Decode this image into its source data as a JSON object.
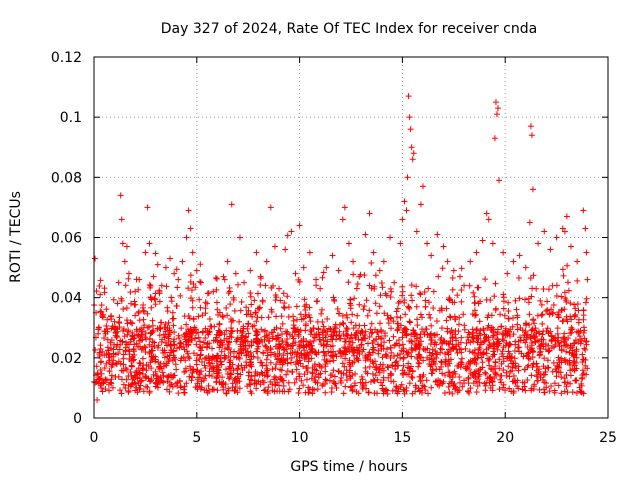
{
  "chart_data": {
    "type": "scatter",
    "title": "Day 327 of 2024, Rate Of TEC Index for receiver cnda",
    "xlabel": "GPS time / hours",
    "ylabel": "ROTI / TECUs",
    "xlim": [
      0,
      25
    ],
    "ylim": [
      0,
      0.12
    ],
    "xticks": [
      0,
      5,
      10,
      15,
      20,
      25
    ],
    "xtick_labels": [
      "0",
      "5",
      "10",
      "15",
      "20",
      "25"
    ],
    "yticks": [
      0,
      0.02,
      0.04,
      0.06,
      0.08,
      0.1,
      0.12
    ],
    "ytick_labels": [
      "0",
      "0.02",
      "0.04",
      "0.06",
      "0.08",
      "0.1",
      "0.12"
    ],
    "grid": true,
    "marker": "+",
    "color": "#ff0000",
    "series": [
      {
        "values": [
          [
            0.05,
            0.053
          ],
          [
            0.1,
            0.035
          ],
          [
            0.2,
            0.028
          ],
          [
            0.3,
            0.041
          ],
          [
            0.0,
            0.012
          ],
          [
            0.15,
            0.006
          ],
          [
            0.4,
            0.022
          ],
          [
            0.6,
            0.018
          ],
          [
            0.8,
            0.025
          ],
          [
            1.0,
            0.032
          ],
          [
            1.2,
            0.045
          ],
          [
            1.3,
            0.074
          ],
          [
            1.35,
            0.066
          ],
          [
            1.4,
            0.058
          ],
          [
            1.5,
            0.052
          ],
          [
            1.6,
            0.057
          ],
          [
            1.7,
            0.048
          ],
          [
            1.8,
            0.038
          ],
          [
            2.0,
            0.042
          ],
          [
            2.2,
            0.046
          ],
          [
            2.5,
            0.055
          ],
          [
            2.6,
            0.07
          ],
          [
            2.7,
            0.058
          ],
          [
            2.9,
            0.047
          ],
          [
            3.1,
            0.051
          ],
          [
            3.3,
            0.044
          ],
          [
            3.5,
            0.05
          ],
          [
            3.7,
            0.053
          ],
          [
            3.9,
            0.048
          ],
          [
            4.1,
            0.046
          ],
          [
            4.3,
            0.052
          ],
          [
            4.5,
            0.06
          ],
          [
            4.6,
            0.069
          ],
          [
            4.7,
            0.063
          ],
          [
            4.8,
            0.055
          ],
          [
            5.0,
            0.049
          ],
          [
            5.2,
            0.045
          ],
          [
            5.5,
            0.038
          ],
          [
            5.8,
            0.042
          ],
          [
            6.0,
            0.036
          ],
          [
            6.3,
            0.047
          ],
          [
            6.5,
            0.052
          ],
          [
            6.7,
            0.071
          ],
          [
            6.9,
            0.048
          ],
          [
            7.1,
            0.06
          ],
          [
            7.3,
            0.045
          ],
          [
            7.6,
            0.049
          ],
          [
            7.9,
            0.055
          ],
          [
            8.1,
            0.047
          ],
          [
            8.4,
            0.052
          ],
          [
            8.6,
            0.07
          ],
          [
            8.8,
            0.057
          ],
          [
            9.0,
            0.043
          ],
          [
            9.3,
            0.056
          ],
          [
            9.6,
            0.062
          ],
          [
            9.8,
            0.048
          ],
          [
            10.0,
            0.064
          ],
          [
            10.2,
            0.05
          ],
          [
            10.5,
            0.055
          ],
          [
            10.8,
            0.046
          ],
          [
            11.0,
            0.043
          ],
          [
            11.3,
            0.05
          ],
          [
            11.6,
            0.054
          ],
          [
            11.9,
            0.049
          ],
          [
            12.1,
            0.066
          ],
          [
            12.2,
            0.07
          ],
          [
            12.4,
            0.058
          ],
          [
            12.6,
            0.052
          ],
          [
            12.9,
            0.047
          ],
          [
            13.2,
            0.061
          ],
          [
            13.4,
            0.068
          ],
          [
            13.6,
            0.055
          ],
          [
            13.9,
            0.049
          ],
          [
            14.1,
            0.052
          ],
          [
            14.4,
            0.06
          ],
          [
            14.6,
            0.045
          ],
          [
            14.9,
            0.058
          ],
          [
            15.0,
            0.066
          ],
          [
            15.1,
            0.072
          ],
          [
            15.2,
            0.069
          ],
          [
            15.25,
            0.08
          ],
          [
            15.3,
            0.107
          ],
          [
            15.35,
            0.1
          ],
          [
            15.4,
            0.096
          ],
          [
            15.45,
            0.09
          ],
          [
            15.5,
            0.086
          ],
          [
            15.55,
            0.088
          ],
          [
            15.7,
            0.062
          ],
          [
            15.9,
            0.071
          ],
          [
            16.0,
            0.077
          ],
          [
            16.2,
            0.058
          ],
          [
            16.4,
            0.054
          ],
          [
            16.7,
            0.061
          ],
          [
            17.0,
            0.057
          ],
          [
            17.2,
            0.052
          ],
          [
            17.5,
            0.049
          ],
          [
            17.8,
            0.047
          ],
          [
            18.0,
            0.044
          ],
          [
            18.3,
            0.052
          ],
          [
            18.6,
            0.055
          ],
          [
            18.9,
            0.059
          ],
          [
            19.1,
            0.068
          ],
          [
            19.2,
            0.066
          ],
          [
            19.4,
            0.058
          ],
          [
            19.5,
            0.093
          ],
          [
            19.55,
            0.105
          ],
          [
            19.6,
            0.101
          ],
          [
            19.65,
            0.103
          ],
          [
            19.7,
            0.079
          ],
          [
            19.9,
            0.055
          ],
          [
            20.1,
            0.048
          ],
          [
            20.4,
            0.052
          ],
          [
            20.7,
            0.054
          ],
          [
            21.0,
            0.05
          ],
          [
            21.2,
            0.065
          ],
          [
            21.25,
            0.097
          ],
          [
            21.3,
            0.094
          ],
          [
            21.35,
            0.076
          ],
          [
            21.6,
            0.058
          ],
          [
            21.9,
            0.062
          ],
          [
            22.2,
            0.056
          ],
          [
            22.5,
            0.06
          ],
          [
            22.8,
            0.063
          ],
          [
            23.0,
            0.067
          ],
          [
            23.2,
            0.057
          ],
          [
            23.5,
            0.052
          ],
          [
            23.8,
            0.069
          ],
          [
            23.9,
            0.063
          ],
          [
            23.95,
            0.055
          ],
          [
            24.0,
            0.046
          ]
        ]
      }
    ]
  }
}
